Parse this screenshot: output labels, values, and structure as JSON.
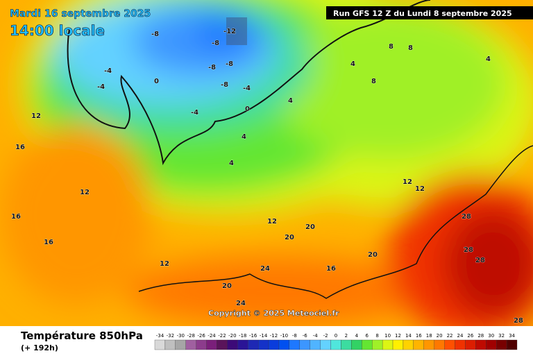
{
  "header": {
    "date": "Mardi 16 septembre 2025",
    "time": "14:00 locale",
    "run": "Run GFS 12 Z du Lundi 8 septembre 2025",
    "copyright": "Copyright © 2025 Meteociel.fr"
  },
  "legend": {
    "title": "Température 850hPa",
    "lead": "(+ 192h)",
    "ticks": [
      -34,
      -32,
      -30,
      -28,
      -26,
      -24,
      -22,
      -20,
      -18,
      -16,
      -14,
      -12,
      -10,
      -8,
      -6,
      -4,
      -2,
      0,
      2,
      4,
      6,
      8,
      10,
      12,
      14,
      16,
      18,
      20,
      22,
      24,
      26,
      28,
      30,
      32,
      34
    ],
    "colors": [
      "#d9d9d9",
      "#bfbfbf",
      "#a6a6a6",
      "#a060a0",
      "#8c3c8c",
      "#7a1f7a",
      "#5a145a",
      "#3c0a78",
      "#2a1496",
      "#1e28b4",
      "#1432c8",
      "#0a3cdc",
      "#0050f0",
      "#1e78ff",
      "#3c96ff",
      "#50b4ff",
      "#64d2ff",
      "#50e6dc",
      "#3cdca0",
      "#32d264",
      "#64e632",
      "#a0f028",
      "#dcf514",
      "#fff000",
      "#ffd200",
      "#ffb400",
      "#ff9600",
      "#ff7800",
      "#ff5000",
      "#f03200",
      "#dc1e00",
      "#be0a00",
      "#a00000",
      "#780000",
      "#500000"
    ]
  },
  "map_labels": [
    "-12",
    "-8",
    "-8",
    "-8",
    "-8",
    "-8",
    "-4",
    "-4",
    "-4",
    "-4",
    "0",
    "0",
    "4",
    "4",
    "4",
    "4",
    "8",
    "8",
    "8",
    "12",
    "12",
    "12",
    "12",
    "16",
    "16",
    "16",
    "16",
    "20",
    "20",
    "20",
    "20",
    "24",
    "24",
    "28",
    "28",
    "28",
    "28",
    "12",
    "12",
    "4"
  ]
}
